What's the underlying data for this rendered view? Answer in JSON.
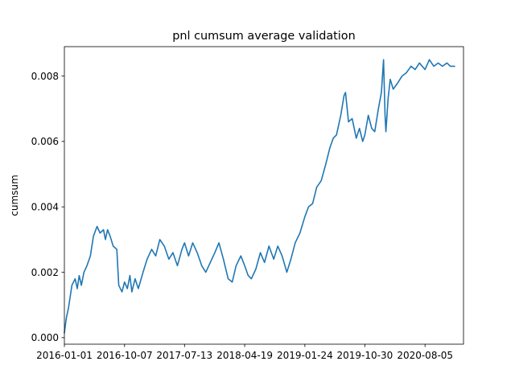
{
  "chart_data": {
    "type": "line",
    "title": "pnl cumsum average validation",
    "xlabel": "",
    "ylabel": "cumsum",
    "x_range": [
      "2016-01-01",
      "2021-01-31"
    ],
    "ylim": [
      -0.0002,
      0.0089
    ],
    "x_ticks": [
      "2016-01-01",
      "2016-10-07",
      "2017-07-13",
      "2018-04-19",
      "2019-01-24",
      "2019-10-30",
      "2020-08-05"
    ],
    "y_ticks": [
      "0.000",
      "0.002",
      "0.004",
      "0.006",
      "0.008"
    ],
    "y_tick_values": [
      0.0,
      0.002,
      0.004,
      0.006,
      0.008
    ],
    "grid": false,
    "line_color": "#1f77b4",
    "series": [
      {
        "name": "cumsum",
        "x": [
          "2016-01-01",
          "2016-01-10",
          "2016-01-20",
          "2016-02-05",
          "2016-02-20",
          "2016-03-01",
          "2016-03-10",
          "2016-03-20",
          "2016-04-01",
          "2016-04-15",
          "2016-05-01",
          "2016-05-15",
          "2016-06-01",
          "2016-06-15",
          "2016-07-01",
          "2016-07-10",
          "2016-07-20",
          "2016-08-01",
          "2016-08-15",
          "2016-09-01",
          "2016-09-10",
          "2016-09-25",
          "2016-10-07",
          "2016-10-20",
          "2016-11-01",
          "2016-11-10",
          "2016-11-25",
          "2016-12-10",
          "2017-01-01",
          "2017-01-20",
          "2017-02-10",
          "2017-03-01",
          "2017-03-20",
          "2017-04-10",
          "2017-05-01",
          "2017-05-20",
          "2017-06-10",
          "2017-07-01",
          "2017-07-13",
          "2017-08-01",
          "2017-08-20",
          "2017-09-10",
          "2017-10-01",
          "2017-10-20",
          "2017-11-10",
          "2017-12-01",
          "2017-12-20",
          "2018-01-10",
          "2018-02-01",
          "2018-02-20",
          "2018-03-10",
          "2018-04-01",
          "2018-04-19",
          "2018-05-05",
          "2018-05-20",
          "2018-06-10",
          "2018-07-01",
          "2018-07-20",
          "2018-08-10",
          "2018-09-01",
          "2018-09-20",
          "2018-10-10",
          "2018-11-01",
          "2018-11-20",
          "2018-12-10",
          "2019-01-01",
          "2019-01-24",
          "2019-02-10",
          "2019-03-01",
          "2019-03-20",
          "2019-04-10",
          "2019-05-01",
          "2019-05-20",
          "2019-06-05",
          "2019-06-20",
          "2019-07-10",
          "2019-07-25",
          "2019-08-01",
          "2019-08-15",
          "2019-09-01",
          "2019-09-20",
          "2019-10-05",
          "2019-10-20",
          "2019-10-30",
          "2019-11-15",
          "2019-12-01",
          "2019-12-15",
          "2020-01-01",
          "2020-01-15",
          "2020-01-25",
          "2020-02-01",
          "2020-02-05",
          "2020-02-15",
          "2020-02-25",
          "2020-03-10",
          "2020-04-01",
          "2020-04-20",
          "2020-05-10",
          "2020-06-01",
          "2020-06-20",
          "2020-07-10",
          "2020-08-05",
          "2020-08-25",
          "2020-09-15",
          "2020-10-05",
          "2020-10-25",
          "2020-11-15",
          "2020-12-01",
          "2020-12-20"
        ],
        "values": [
          0.00015,
          0.0006,
          0.0009,
          0.0016,
          0.0018,
          0.0015,
          0.0019,
          0.0016,
          0.002,
          0.0022,
          0.0025,
          0.0031,
          0.0034,
          0.0032,
          0.0033,
          0.003,
          0.0033,
          0.0031,
          0.0028,
          0.0027,
          0.0016,
          0.0014,
          0.0017,
          0.0015,
          0.0019,
          0.0014,
          0.0018,
          0.0015,
          0.002,
          0.0024,
          0.0027,
          0.0025,
          0.003,
          0.0028,
          0.0024,
          0.0026,
          0.0022,
          0.0027,
          0.0029,
          0.0025,
          0.0029,
          0.0026,
          0.0022,
          0.002,
          0.0023,
          0.0026,
          0.0029,
          0.0024,
          0.0018,
          0.0017,
          0.0022,
          0.0025,
          0.0022,
          0.0019,
          0.0018,
          0.0021,
          0.0026,
          0.0023,
          0.0028,
          0.0024,
          0.0028,
          0.0025,
          0.002,
          0.0024,
          0.0029,
          0.0032,
          0.0037,
          0.004,
          0.0041,
          0.0046,
          0.0048,
          0.0053,
          0.0058,
          0.0061,
          0.0062,
          0.0068,
          0.0074,
          0.0075,
          0.0066,
          0.0067,
          0.0061,
          0.0064,
          0.006,
          0.0062,
          0.0068,
          0.0064,
          0.0063,
          0.007,
          0.0075,
          0.0085,
          0.0068,
          0.0063,
          0.0073,
          0.0079,
          0.0076,
          0.0078,
          0.008,
          0.0081,
          0.0083,
          0.0082,
          0.0084,
          0.0082,
          0.0085,
          0.0083,
          0.0084,
          0.0083,
          0.0084,
          0.0083,
          0.0083
        ]
      }
    ]
  }
}
